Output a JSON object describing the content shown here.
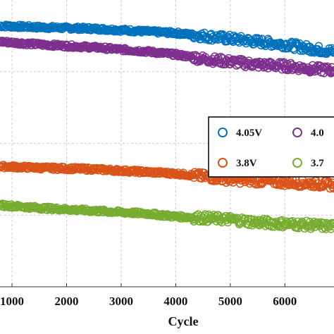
{
  "chart_data": {
    "type": "scatter",
    "xlabel": "Cycle",
    "ylabel": "",
    "x_tick_labels": [
      "1000",
      "2000",
      "3000",
      "4000",
      "5000",
      "6000"
    ],
    "xlim": [
      780,
      6900
    ],
    "ylim": [
      0,
      1
    ],
    "grid": true,
    "legend_position": "right",
    "series": [
      {
        "name": "4.05V",
        "color": "#0072BD",
        "x": [
          780,
          1500,
          2500,
          3500,
          4000,
          4500,
          5000,
          5500,
          6000,
          6500,
          6900
        ],
        "y": [
          0.91,
          0.905,
          0.9,
          0.89,
          0.885,
          0.875,
          0.865,
          0.855,
          0.845,
          0.83,
          0.82
        ]
      },
      {
        "name": "4.0",
        "color": "#7E2F8E",
        "x": [
          780,
          1500,
          2500,
          3500,
          4000,
          4500,
          5000,
          5500,
          6000,
          6500,
          6900
        ],
        "y": [
          0.855,
          0.845,
          0.835,
          0.82,
          0.81,
          0.795,
          0.785,
          0.775,
          0.77,
          0.76,
          0.755
        ]
      },
      {
        "name": "3.8V",
        "color": "#D95319",
        "x": [
          780,
          1500,
          2500,
          3500,
          4000,
          4500,
          5000,
          5500,
          6000,
          6500,
          6900
        ],
        "y": [
          0.42,
          0.415,
          0.41,
          0.4,
          0.395,
          0.385,
          0.375,
          0.37,
          0.365,
          0.36,
          0.355
        ]
      },
      {
        "name": "3.7",
        "color": "#77AC30",
        "x": [
          780,
          1500,
          2500,
          3500,
          4000,
          4500,
          5000,
          5500,
          6000,
          6500,
          6900
        ],
        "y": [
          0.285,
          0.275,
          0.265,
          0.255,
          0.245,
          0.24,
          0.235,
          0.225,
          0.22,
          0.215,
          0.21
        ]
      }
    ],
    "legend": [
      {
        "label": "4.05V"
      },
      {
        "label": "4.0"
      },
      {
        "label": "3.8V"
      },
      {
        "label": "3.7"
      }
    ]
  }
}
